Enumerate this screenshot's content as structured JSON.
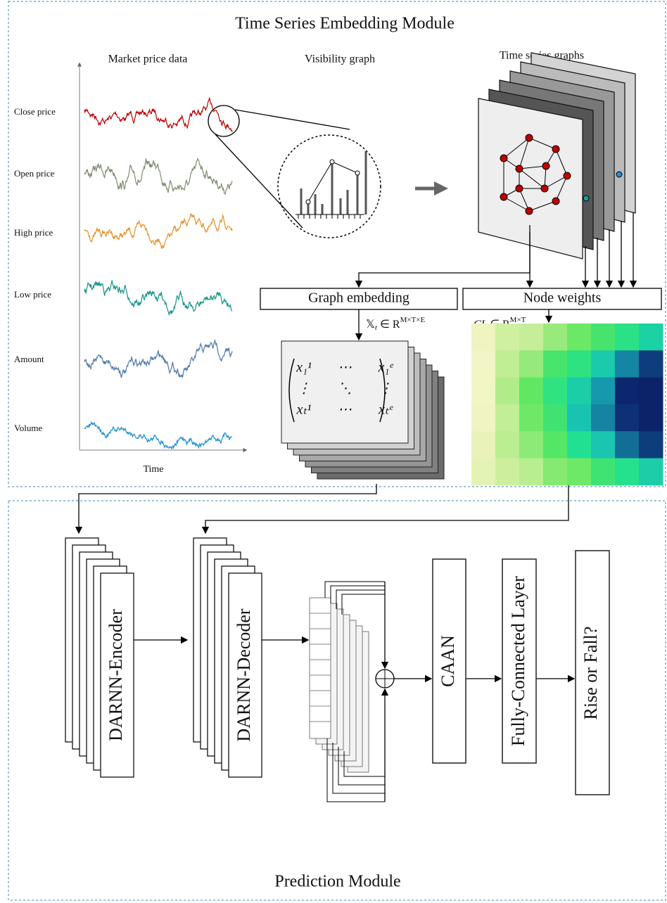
{
  "header": {
    "title": "Time Series Embedding Module"
  },
  "embedding": {
    "market_label": "Market price data",
    "visibility_label": "Visibility graph",
    "graphs_label": "Time series graphs",
    "series": [
      "Close price",
      "Open price",
      "High price",
      "Low price",
      "Amount",
      "Volume"
    ],
    "time_label": "Time",
    "graph_embedding": "Graph embedding",
    "node_weights": "Node weights",
    "embedding_formula": {
      "symbol": "𝕏",
      "sub": "t",
      "in": " ∈ R",
      "sup": "M×T×E"
    },
    "weights_formula": {
      "symbol": "CI",
      "sub": "t",
      "in": " ∈ R",
      "sup": "M×T"
    },
    "matrix": [
      [
        "x₁¹",
        "⋯",
        "x₁ᵉ"
      ],
      [
        "⋮",
        "⋱",
        "⋮"
      ],
      [
        "xₜ¹",
        "⋯",
        "xₜᵉ"
      ]
    ]
  },
  "prediction": {
    "title": "Prediction Module",
    "encoder": "DARNN-Encoder",
    "decoder": "DARNN-Decoder",
    "caan": "CAAN",
    "fc": "Fully-Connected Layer",
    "output": "Rise or Fall?"
  }
}
